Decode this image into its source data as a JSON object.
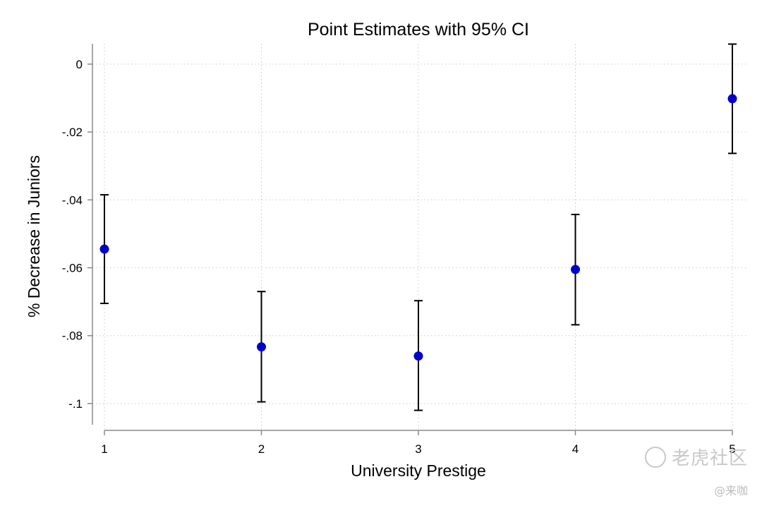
{
  "chart_data": {
    "type": "scatter",
    "title": "Point Estimates with 95% CI",
    "xlabel": "University Prestige",
    "ylabel": "% Decrease in Juniors",
    "xlim": [
      1,
      5
    ],
    "ylim": [
      -0.105,
      0.006
    ],
    "x_ticks": [
      {
        "value": 1,
        "label": "1"
      },
      {
        "value": 2,
        "label": "2"
      },
      {
        "value": 3,
        "label": "3"
      },
      {
        "value": 4,
        "label": "4"
      },
      {
        "value": 5,
        "label": "5"
      }
    ],
    "y_ticks": [
      {
        "value": 0,
        "label": "0"
      },
      {
        "value": -0.02,
        "label": "-.02"
      },
      {
        "value": -0.04,
        "label": "-.04"
      },
      {
        "value": -0.06,
        "label": "-.06"
      },
      {
        "value": -0.08,
        "label": "-.08"
      },
      {
        "value": -0.1,
        "label": "-.1"
      }
    ],
    "grid": true,
    "marker_color": "#0000cc",
    "ci_color": "#000000",
    "points": [
      {
        "x": 1,
        "y": -0.0545,
        "ci_low": -0.0705,
        "ci_high": -0.0385
      },
      {
        "x": 2,
        "y": -0.0833,
        "ci_low": -0.0995,
        "ci_high": -0.067
      },
      {
        "x": 3,
        "y": -0.086,
        "ci_low": -0.102,
        "ci_high": -0.0697
      },
      {
        "x": 4,
        "y": -0.0605,
        "ci_low": -0.0768,
        "ci_high": -0.0443
      },
      {
        "x": 5,
        "y": -0.0102,
        "ci_low": -0.0263,
        "ci_high": 0.0059
      }
    ]
  },
  "watermark": {
    "text": "老虎社区",
    "credit": "@来咖"
  }
}
